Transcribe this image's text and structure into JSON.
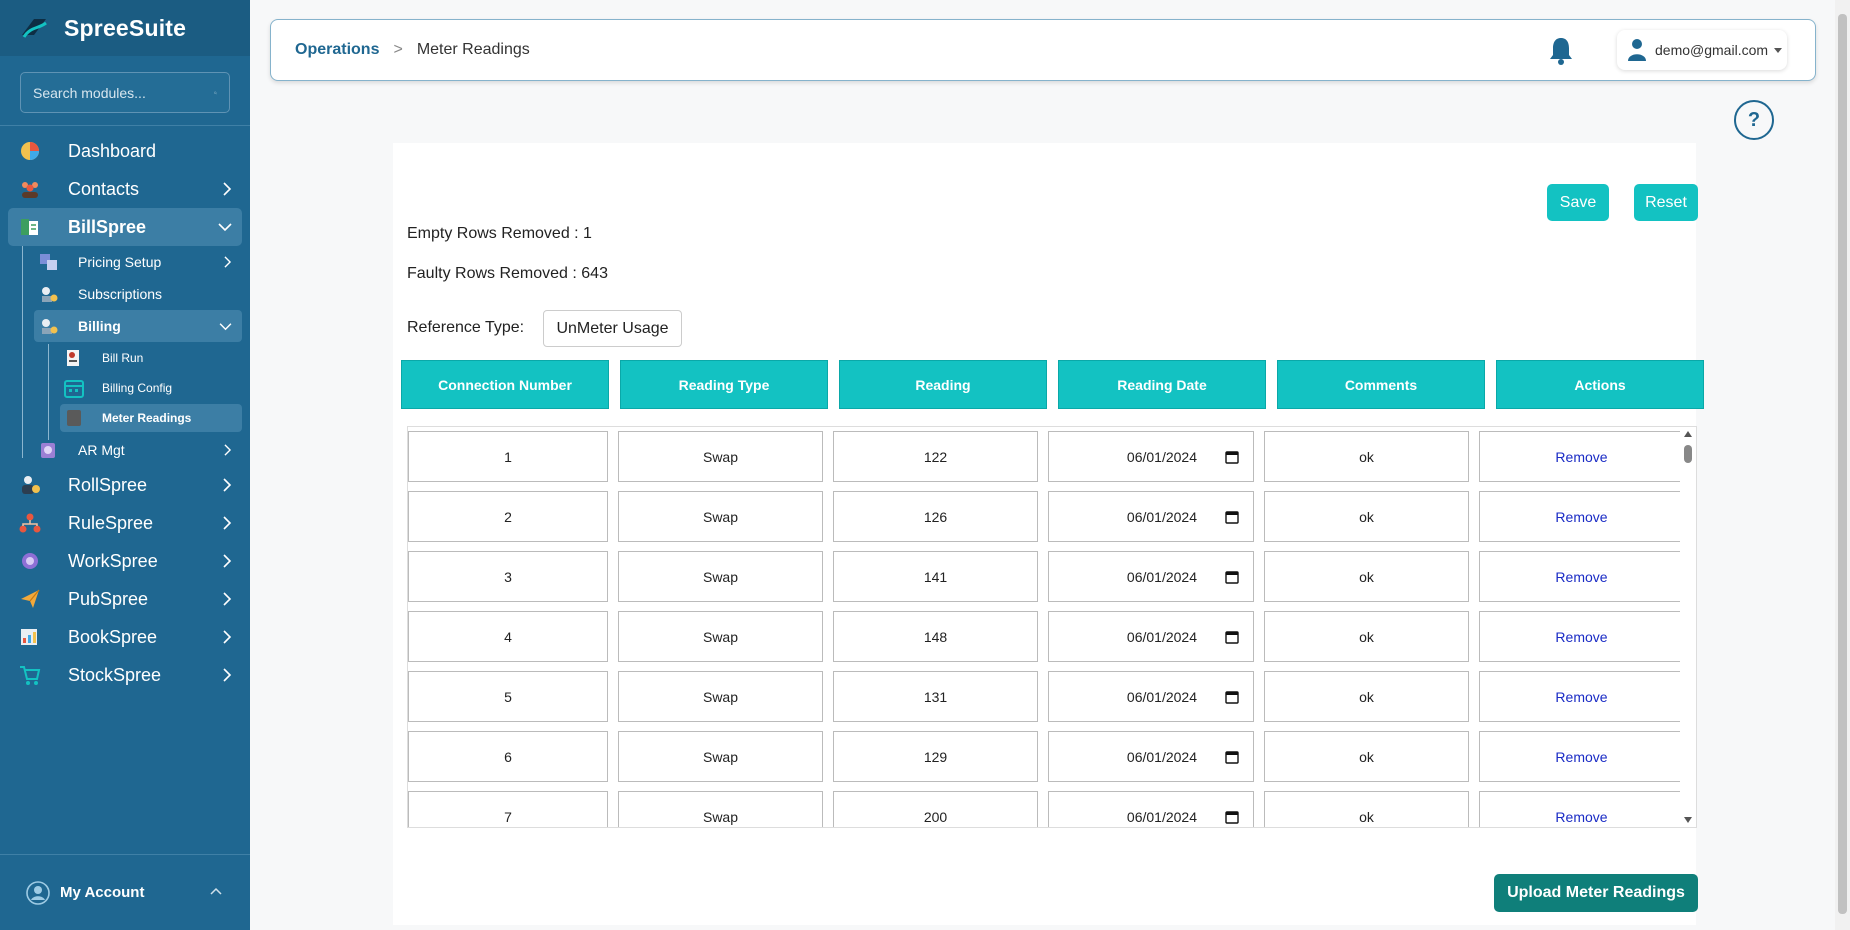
{
  "app": {
    "name": "SpreeSuite"
  },
  "sidebar": {
    "search_placeholder": "Search modules...",
    "items": [
      {
        "label": "Dashboard",
        "icon": "pie-chart-icon"
      },
      {
        "label": "Contacts",
        "icon": "people-icon"
      },
      {
        "label": "BillSpree",
        "icon": "bill-icon"
      },
      {
        "label": "RollSpree",
        "icon": "person-money-icon"
      },
      {
        "label": "RuleSpree",
        "icon": "hierarchy-icon"
      },
      {
        "label": "WorkSpree",
        "icon": "gear-people-icon"
      },
      {
        "label": "PubSpree",
        "icon": "paper-plane-icon"
      },
      {
        "label": "BookSpree",
        "icon": "ledger-icon"
      },
      {
        "label": "StockSpree",
        "icon": "cart-icon"
      }
    ],
    "billspree_sub": [
      {
        "label": "Pricing Setup"
      },
      {
        "label": "Subscriptions"
      },
      {
        "label": "Billing"
      },
      {
        "label": "AR Mgt"
      }
    ],
    "billing_sub": [
      {
        "label": "Bill Run"
      },
      {
        "label": "Billing Config"
      },
      {
        "label": "Meter Readings"
      }
    ],
    "account_label": "My Account"
  },
  "header": {
    "breadcrumb_root": "Operations",
    "breadcrumb_sep": ">",
    "breadcrumb_current": "Meter Readings",
    "user_email": "demo@gmail.com"
  },
  "help_label": "?",
  "toolbar": {
    "save_label": "Save",
    "reset_label": "Reset"
  },
  "stats": {
    "empty_rows": "Empty Rows Removed : 1",
    "faulty_rows": "Faulty Rows Removed : 643"
  },
  "reference": {
    "label": "Reference Type:",
    "value": "UnMeter Usage"
  },
  "table": {
    "columns": [
      "Connection Number",
      "Reading Type",
      "Reading",
      "Reading Date",
      "Comments",
      "Actions"
    ],
    "action_label": "Remove",
    "rows": [
      {
        "connection": "1",
        "type": "Swap",
        "reading": "122",
        "date": "06/01/2024",
        "comment": "ok"
      },
      {
        "connection": "2",
        "type": "Swap",
        "reading": "126",
        "date": "06/01/2024",
        "comment": "ok"
      },
      {
        "connection": "3",
        "type": "Swap",
        "reading": "141",
        "date": "06/01/2024",
        "comment": "ok"
      },
      {
        "connection": "4",
        "type": "Swap",
        "reading": "148",
        "date": "06/01/2024",
        "comment": "ok"
      },
      {
        "connection": "5",
        "type": "Swap",
        "reading": "131",
        "date": "06/01/2024",
        "comment": "ok"
      },
      {
        "connection": "6",
        "type": "Swap",
        "reading": "129",
        "date": "06/01/2024",
        "comment": "ok"
      },
      {
        "connection": "7",
        "type": "Swap",
        "reading": "200",
        "date": "06/01/2024",
        "comment": "ok"
      }
    ]
  },
  "upload_label": "Upload Meter Readings",
  "colors": {
    "sidebar": "#1f6791",
    "teal": "#13c2c2",
    "upload": "#0f7f7a",
    "link": "#1a2bc5"
  }
}
